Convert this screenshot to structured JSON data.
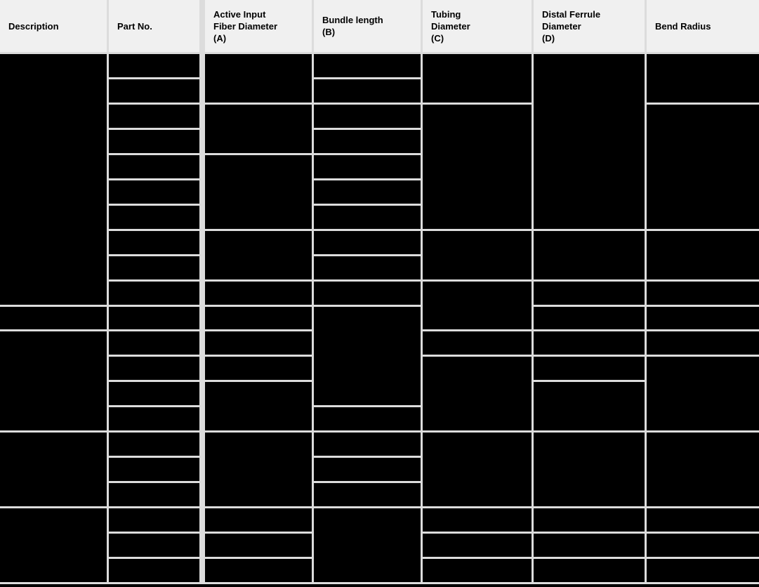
{
  "document": {
    "kind": "specification-table",
    "redacted": true,
    "note": "All body cell values are blacked out; only headers and cell structure are visible"
  },
  "colors": {
    "header_background": "#f0f0f0",
    "header_text": "#000000",
    "gridline": "#dcdcdc",
    "cell_background": "#000000",
    "bottom_border": "#000000"
  },
  "table": {
    "row_count": 21,
    "columns": [
      {
        "id": "description",
        "label": "Description",
        "cells": [
          10,
          1,
          4,
          3,
          3
        ]
      },
      {
        "id": "part-no",
        "label": "Part No.",
        "cells": [
          1,
          1,
          1,
          1,
          1,
          1,
          1,
          1,
          1,
          1,
          1,
          1,
          1,
          1,
          1,
          1,
          1,
          1,
          1,
          1,
          1
        ]
      },
      {
        "id": "active-input",
        "label": "Active Input\nFiber Diameter\n(A)",
        "cells": [
          2,
          2,
          3,
          2,
          1,
          1,
          1,
          1,
          2,
          3,
          1,
          1,
          1
        ]
      },
      {
        "id": "bundle-length",
        "label": "Bundle length\n(B)",
        "cells": [
          1,
          1,
          1,
          1,
          1,
          1,
          1,
          1,
          1,
          1,
          4,
          1,
          1,
          1,
          1,
          3
        ]
      },
      {
        "id": "tubing",
        "label": "Tubing\nDiameter\n(C)",
        "cells": [
          2,
          5,
          2,
          2,
          1,
          3,
          3,
          1,
          1,
          1
        ]
      },
      {
        "id": "distal-ferrule",
        "label": "Distal Ferrule\nDiameter\n(D)",
        "cells": [
          7,
          2,
          1,
          1,
          1,
          1,
          2,
          3,
          1,
          1,
          1
        ]
      },
      {
        "id": "bend-radius",
        "label": "Bend Radius",
        "cells": [
          2,
          5,
          2,
          1,
          1,
          1,
          3,
          3,
          1,
          1,
          1
        ]
      }
    ]
  }
}
